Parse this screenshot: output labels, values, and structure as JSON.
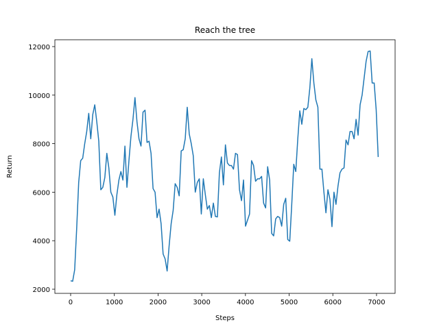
{
  "chart_data": {
    "type": "line",
    "title": "Reach the tree",
    "x_label": "Steps",
    "y_label": "Return",
    "color": "#1f77b4",
    "grid": false,
    "xlim": [
      -361,
      7425
    ],
    "ylim": [
      1830,
      12282
    ],
    "xticks": [
      0,
      1000,
      2000,
      3000,
      4000,
      5000,
      6000,
      7000
    ],
    "yticks": [
      2000,
      4000,
      6000,
      8000,
      10000,
      12000
    ],
    "x": [
      0,
      46,
      92,
      138,
      184,
      230,
      276,
      322,
      368,
      414,
      460,
      506,
      552,
      598,
      644,
      690,
      736,
      782,
      828,
      874,
      920,
      966,
      1012,
      1058,
      1104,
      1150,
      1196,
      1242,
      1288,
      1334,
      1380,
      1426,
      1472,
      1518,
      1564,
      1610,
      1656,
      1702,
      1748,
      1794,
      1840,
      1886,
      1932,
      1978,
      2024,
      2070,
      2116,
      2162,
      2208,
      2254,
      2300,
      2346,
      2392,
      2438,
      2484,
      2530,
      2576,
      2622,
      2668,
      2714,
      2760,
      2806,
      2852,
      2898,
      2944,
      2990,
      3036,
      3082,
      3128,
      3174,
      3220,
      3266,
      3312,
      3358,
      3404,
      3450,
      3496,
      3542,
      3588,
      3634,
      3680,
      3726,
      3772,
      3818,
      3864,
      3910,
      3956,
      4002,
      4048,
      4094,
      4140,
      4186,
      4232,
      4278,
      4324,
      4370,
      4416,
      4462,
      4508,
      4554,
      4600,
      4646,
      4692,
      4738,
      4784,
      4830,
      4876,
      4922,
      4968,
      5014,
      5060,
      5106,
      5152,
      5198,
      5244,
      5290,
      5336,
      5382,
      5428,
      5474,
      5520,
      5566,
      5612,
      5658,
      5704,
      5750,
      5796,
      5842,
      5888,
      5934,
      5980,
      6026,
      6072,
      6118,
      6164,
      6210,
      6256,
      6302,
      6348,
      6394,
      6440,
      6486,
      6532,
      6578,
      6624,
      6670,
      6716,
      6762,
      6808,
      6854,
      6900,
      6946,
      6992,
      7038
    ],
    "values": [
      2350,
      2330,
      2800,
      4500,
      6400,
      7300,
      7400,
      8000,
      8500,
      9250,
      8200,
      9200,
      9600,
      8900,
      8100,
      6100,
      6200,
      6600,
      7600,
      7000,
      6000,
      5800,
      5050,
      5900,
      6500,
      6850,
      6500,
      7900,
      6200,
      7300,
      8300,
      9000,
      9900,
      8900,
      8200,
      7900,
      9300,
      9380,
      8050,
      8100,
      7600,
      6150,
      6000,
      4950,
      5300,
      4700,
      3450,
      3250,
      2750,
      3800,
      4700,
      5250,
      6350,
      6200,
      5850,
      7700,
      7750,
      8200,
      9500,
      8400,
      8000,
      7500,
      6000,
      6400,
      6550,
      5100,
      6550,
      5900,
      5300,
      5450,
      4950,
      5550,
      5000,
      4980,
      6800,
      7450,
      6300,
      7950,
      7200,
      7100,
      7100,
      6950,
      7600,
      7550,
      6100,
      5650,
      6500,
      4600,
      4850,
      5100,
      7300,
      7100,
      6450,
      6550,
      6550,
      6650,
      5550,
      5350,
      7050,
      6500,
      4300,
      4200,
      4900,
      5000,
      4950,
      4600,
      5500,
      5750,
      4050,
      3980,
      5500,
      7150,
      6850,
      8200,
      9350,
      8800,
      9450,
      9400,
      9500,
      10300,
      11500,
      10500,
      9800,
      9500,
      6950,
      6950,
      6000,
      5150,
      6100,
      5700,
      4580,
      6000,
      5500,
      6250,
      6800,
      6950,
      7000,
      8150,
      7950,
      8500,
      8500,
      8200,
      9000,
      8350,
      9600,
      10000,
      10700,
      11400,
      11800,
      11820,
      10500,
      10500,
      9400,
      7450
    ]
  }
}
